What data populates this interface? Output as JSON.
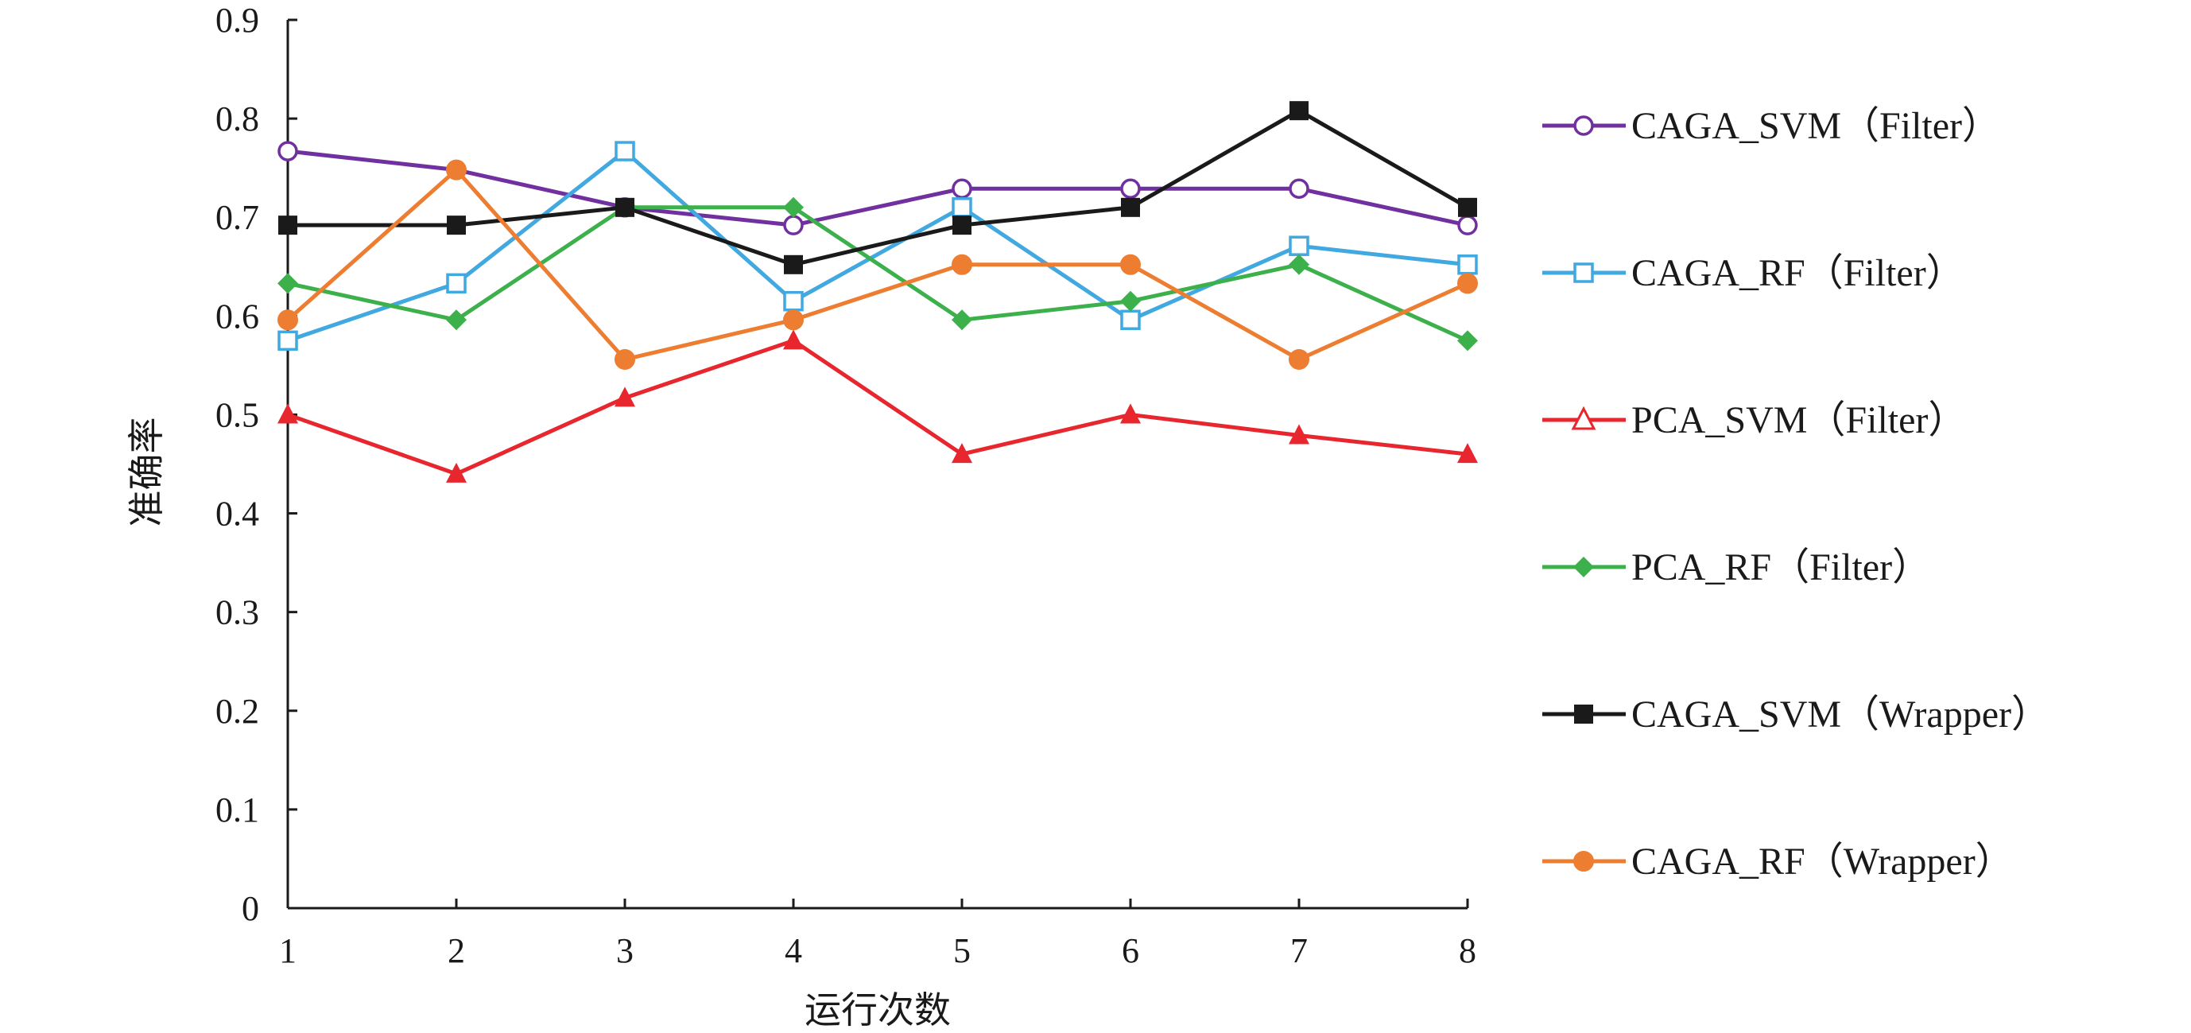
{
  "chart_data": {
    "type": "line",
    "title": "",
    "xlabel": "运行次数",
    "ylabel": "准确率",
    "ylim": [
      0,
      0.9
    ],
    "yticks": [
      "0",
      "0.1",
      "0.2",
      "0.3",
      "0.4",
      "0.5",
      "0.6",
      "0.7",
      "0.8",
      "0.9"
    ],
    "categories": [
      "1",
      "2",
      "3",
      "4",
      "5",
      "6",
      "7",
      "8"
    ],
    "grid": false,
    "legend_position": "right",
    "series": [
      {
        "name": "CAGA_SVM（Filter）",
        "color": "#7030a0",
        "marker": "circle-open",
        "values": [
          0.767,
          0.748,
          0.71,
          0.692,
          0.729,
          0.729,
          0.729,
          0.692
        ]
      },
      {
        "name": "CAGA_RF（Filter）",
        "color": "#41a8e0",
        "marker": "square-open",
        "values": [
          0.575,
          0.633,
          0.767,
          0.615,
          0.71,
          0.596,
          0.671,
          0.652
        ]
      },
      {
        "name": "PCA_SVM（Filter）",
        "color": "#e8262e",
        "marker": "triangle",
        "values": [
          0.5,
          0.44,
          0.517,
          0.575,
          0.46,
          0.5,
          0.479,
          0.46
        ]
      },
      {
        "name": "PCA_RF（Filter）",
        "color": "#3cb04a",
        "marker": "diamond",
        "values": [
          0.633,
          0.596,
          0.71,
          0.71,
          0.596,
          0.615,
          0.652,
          0.575
        ]
      },
      {
        "name": "CAGA_SVM（Wrapper）",
        "color": "#1a1a1a",
        "marker": "square",
        "values": [
          0.692,
          0.692,
          0.71,
          0.652,
          0.692,
          0.71,
          0.808,
          0.71
        ]
      },
      {
        "name": "CAGA_RF（Wrapper）",
        "color": "#ed7d31",
        "marker": "circle",
        "values": [
          0.596,
          0.748,
          0.556,
          0.596,
          0.652,
          0.652,
          0.556,
          0.633
        ]
      }
    ]
  }
}
